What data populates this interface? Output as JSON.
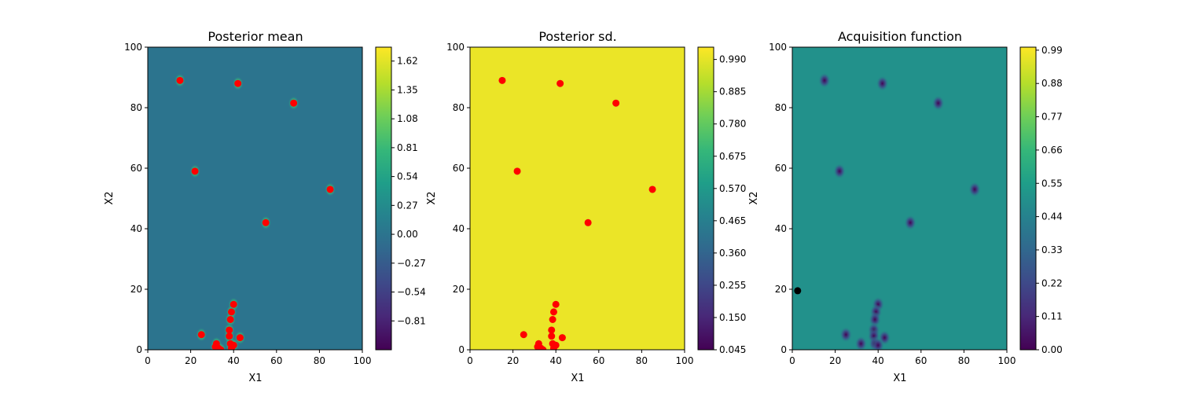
{
  "chart_data": [
    {
      "type": "heatmap",
      "title": "Posterior mean",
      "xlabel": "X1",
      "ylabel": "X2",
      "xlim": [
        0,
        100
      ],
      "ylim": [
        0,
        100
      ],
      "xticks": [
        "0",
        "20",
        "40",
        "60",
        "80",
        "100"
      ],
      "yticks": [
        "0",
        "20",
        "40",
        "60",
        "80",
        "100"
      ],
      "colormap": "viridis",
      "background_value": 0.0,
      "colorbar": {
        "min": -1.08,
        "max": 1.75,
        "ticks": [
          "−0.81",
          "−0.54",
          "−0.27",
          "0.00",
          "0.27",
          "0.54",
          "0.81",
          "1.08",
          "1.35",
          "1.62"
        ],
        "tick_values": [
          -0.81,
          -0.54,
          -0.27,
          0.0,
          0.27,
          0.54,
          0.81,
          1.08,
          1.35,
          1.62
        ]
      },
      "observations": {
        "color": "#ff0000",
        "points": [
          [
            15,
            89
          ],
          [
            42,
            88
          ],
          [
            68,
            81.5
          ],
          [
            22,
            59
          ],
          [
            85,
            53
          ],
          [
            55,
            42
          ],
          [
            40,
            15
          ],
          [
            39,
            12.5
          ],
          [
            38.5,
            10
          ],
          [
            38,
            6.5
          ],
          [
            38,
            4.5
          ],
          [
            25,
            5
          ],
          [
            43,
            4
          ],
          [
            32,
            2
          ],
          [
            31.5,
            1
          ],
          [
            38.5,
            2
          ],
          [
            40,
            1.5
          ],
          [
            33,
            0.5
          ],
          [
            34,
            0
          ],
          [
            39,
            0.5
          ]
        ]
      }
    },
    {
      "type": "heatmap",
      "title": "Posterior sd.",
      "xlabel": "X1",
      "ylabel": "X2",
      "xlim": [
        0,
        100
      ],
      "ylim": [
        0,
        100
      ],
      "xticks": [
        "0",
        "20",
        "40",
        "60",
        "80",
        "100"
      ],
      "yticks": [
        "0",
        "20",
        "40",
        "60",
        "80",
        "100"
      ],
      "colormap": "viridis",
      "background_value": 1.0,
      "colorbar": {
        "min": 0.045,
        "max": 1.03,
        "ticks": [
          "0.045",
          "0.150",
          "0.255",
          "0.360",
          "0.465",
          "0.570",
          "0.675",
          "0.780",
          "0.885",
          "0.990"
        ],
        "tick_values": [
          0.045,
          0.15,
          0.255,
          0.36,
          0.465,
          0.57,
          0.675,
          0.78,
          0.885,
          0.99
        ]
      },
      "observations": {
        "color": "#ff0000",
        "points": [
          [
            15,
            89
          ],
          [
            42,
            88
          ],
          [
            68,
            81.5
          ],
          [
            22,
            59
          ],
          [
            85,
            53
          ],
          [
            55,
            42
          ],
          [
            40,
            15
          ],
          [
            39,
            12.5
          ],
          [
            38.5,
            10
          ],
          [
            38,
            6.5
          ],
          [
            38,
            4.5
          ],
          [
            25,
            5
          ],
          [
            43,
            4
          ],
          [
            32,
            2
          ],
          [
            31.5,
            1
          ],
          [
            38.5,
            2
          ],
          [
            40,
            1.5
          ],
          [
            33,
            0.5
          ],
          [
            34,
            0
          ],
          [
            39,
            0.5
          ]
        ]
      }
    },
    {
      "type": "heatmap",
      "title": "Acquisition function",
      "xlabel": "X1",
      "ylabel": "X2",
      "xlim": [
        0,
        100
      ],
      "ylim": [
        0,
        100
      ],
      "xticks": [
        "0",
        "20",
        "40",
        "60",
        "80",
        "100"
      ],
      "yticks": [
        "0",
        "20",
        "40",
        "60",
        "80",
        "100"
      ],
      "colormap": "viridis",
      "background_value": 0.5,
      "colorbar": {
        "min": 0.0,
        "max": 1.0,
        "ticks": [
          "0.00",
          "0.11",
          "0.22",
          "0.33",
          "0.44",
          "0.55",
          "0.66",
          "0.77",
          "0.88",
          "0.99"
        ],
        "tick_values": [
          0.0,
          0.11,
          0.22,
          0.33,
          0.44,
          0.55,
          0.66,
          0.77,
          0.88,
          0.99
        ]
      },
      "low_regions": [
        [
          15,
          89
        ],
        [
          42,
          88
        ],
        [
          68,
          81.5
        ],
        [
          22,
          59
        ],
        [
          85,
          53
        ],
        [
          55,
          42
        ],
        [
          40,
          15
        ],
        [
          39,
          12.5
        ],
        [
          38.5,
          10
        ],
        [
          38,
          6.5
        ],
        [
          38,
          4.5
        ],
        [
          25,
          5
        ],
        [
          43,
          4
        ],
        [
          32,
          2
        ],
        [
          38.5,
          2
        ],
        [
          40,
          1.5
        ]
      ],
      "next_point": {
        "color": "#000000",
        "point": [
          2.5,
          19.5
        ]
      }
    }
  ]
}
